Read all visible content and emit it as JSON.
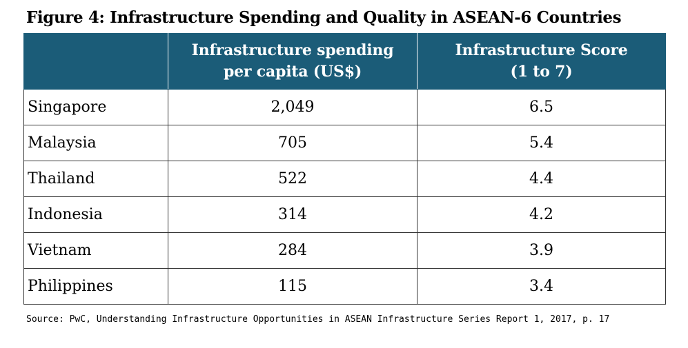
{
  "title": "Figure 4: Infrastructure Spending and Quality in ASEAN-6 Countries",
  "source": "Source: PwC, Understanding Infrastructure Opportunities in ASEAN Infrastructure Series Report 1, 2017, p. 17",
  "colors": {
    "header_background": "#1b5c78",
    "header_text": "#ffffff",
    "border": "#333333"
  },
  "chart_data": {
    "type": "table",
    "title": "Figure 4: Infrastructure Spending and Quality in ASEAN-6 Countries",
    "columns": [
      "",
      "Infrastructure spending\nper capita (US$)",
      "Infrastructure Score\n(1 to 7)"
    ],
    "rows": [
      [
        "Singapore",
        "2,049",
        "6.5"
      ],
      [
        "Malaysia",
        "705",
        "5.4"
      ],
      [
        "Thailand",
        "522",
        "4.4"
      ],
      [
        "Indonesia",
        "314",
        "4.2"
      ],
      [
        "Vietnam",
        "284",
        "3.9"
      ],
      [
        "Philippines",
        "115",
        "3.4"
      ]
    ],
    "series": [
      {
        "name": "Infrastructure spending per capita (US$)",
        "values": [
          2049,
          705,
          522,
          314,
          284,
          115
        ]
      },
      {
        "name": "Infrastructure Score (1 to 7)",
        "values": [
          6.5,
          5.4,
          4.4,
          4.2,
          3.9,
          3.4
        ]
      }
    ],
    "categories": [
      "Singapore",
      "Malaysia",
      "Thailand",
      "Indonesia",
      "Vietnam",
      "Philippines"
    ]
  }
}
